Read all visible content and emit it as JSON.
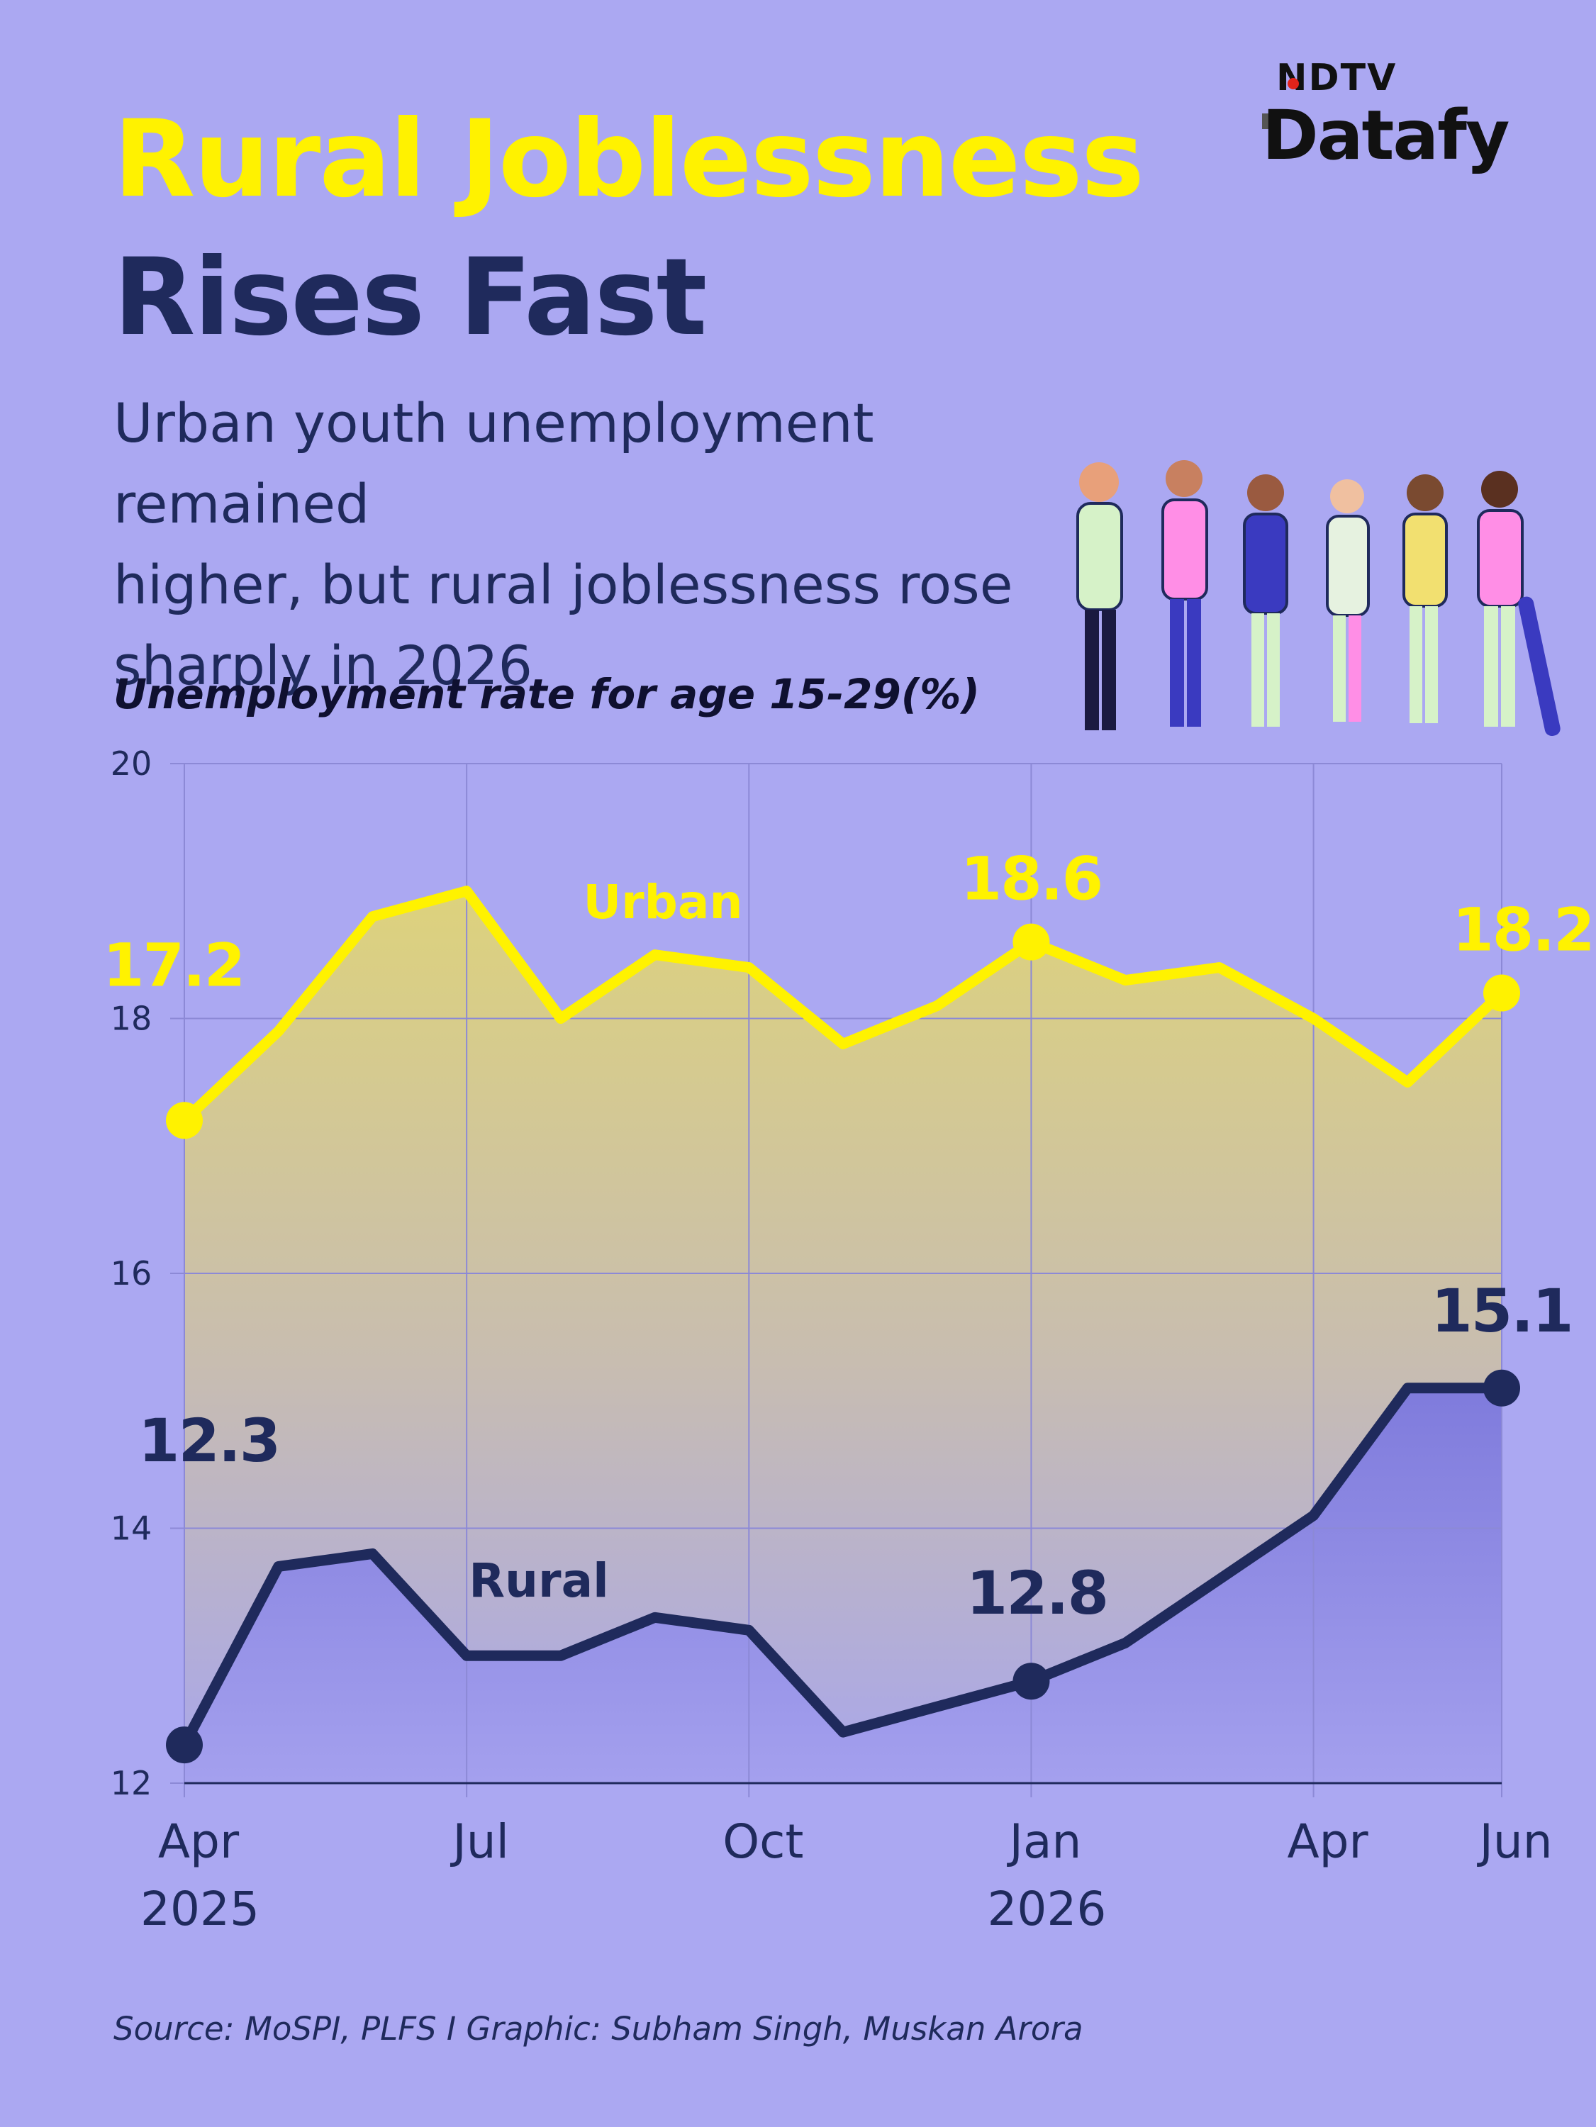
{
  "header": {
    "title_line1": "Rural Joblessness",
    "title_line2": "Rises Fast",
    "subtitle_line1": "Urban youth unemployment remained",
    "subtitle_line2": "higher, but rural joblessness rose",
    "subtitle_line3": "sharply in 2026"
  },
  "brand": {
    "top": "NDTV",
    "main": "Datafy"
  },
  "footer": {
    "source": "Source: MoSPI, PLFS I Graphic: Subham Singh, Muskan Arora"
  },
  "colors": {
    "background": "#aba8f2",
    "urban": "#fff200",
    "rural": "#1f2a5c"
  },
  "chart_data": {
    "type": "line",
    "title": "Unemployment rate for age 15-29(%)",
    "x": [
      "2025-04",
      "2025-05",
      "2025-06",
      "2025-07",
      "2025-08",
      "2025-09",
      "2025-10",
      "2025-11",
      "2025-12",
      "2026-01",
      "2026-02",
      "2026-03",
      "2026-04",
      "2026-05",
      "2026-06"
    ],
    "x_tick_labels": [
      {
        "x": "2025-04",
        "line1": "Apr",
        "line2": "2025"
      },
      {
        "x": "2025-07",
        "line1": "Jul",
        "line2": ""
      },
      {
        "x": "2025-10",
        "line1": "Oct",
        "line2": ""
      },
      {
        "x": "2026-01",
        "line1": "Jan",
        "line2": "2026"
      },
      {
        "x": "2026-04",
        "line1": "Apr",
        "line2": ""
      },
      {
        "x": "2026-06",
        "line1": "Jun",
        "line2": ""
      }
    ],
    "y_ticks": [
      12,
      14,
      16,
      18,
      20
    ],
    "ylim": [
      12,
      20
    ],
    "grid": true,
    "series": [
      {
        "name": "Urban",
        "values": [
          17.2,
          17.9,
          18.8,
          19.0,
          18.0,
          18.5,
          18.4,
          17.8,
          18.1,
          18.6,
          18.3,
          18.4,
          18.0,
          17.5,
          18.2
        ],
        "labels": [
          {
            "x": "2025-04",
            "text": "17.2"
          },
          {
            "x": "2026-01",
            "text": "18.6"
          },
          {
            "x": "2026-06",
            "text": "18.2"
          }
        ]
      },
      {
        "name": "Rural",
        "values": [
          12.3,
          13.7,
          13.8,
          13.0,
          13.0,
          13.3,
          13.2,
          12.4,
          12.6,
          12.8,
          13.1,
          13.6,
          14.1,
          15.1,
          15.1
        ],
        "labels": [
          {
            "x": "2025-04",
            "text": "12.3"
          },
          {
            "x": "2026-01",
            "text": "12.8"
          },
          {
            "x": "2026-06",
            "text": "15.1"
          }
        ]
      }
    ]
  }
}
